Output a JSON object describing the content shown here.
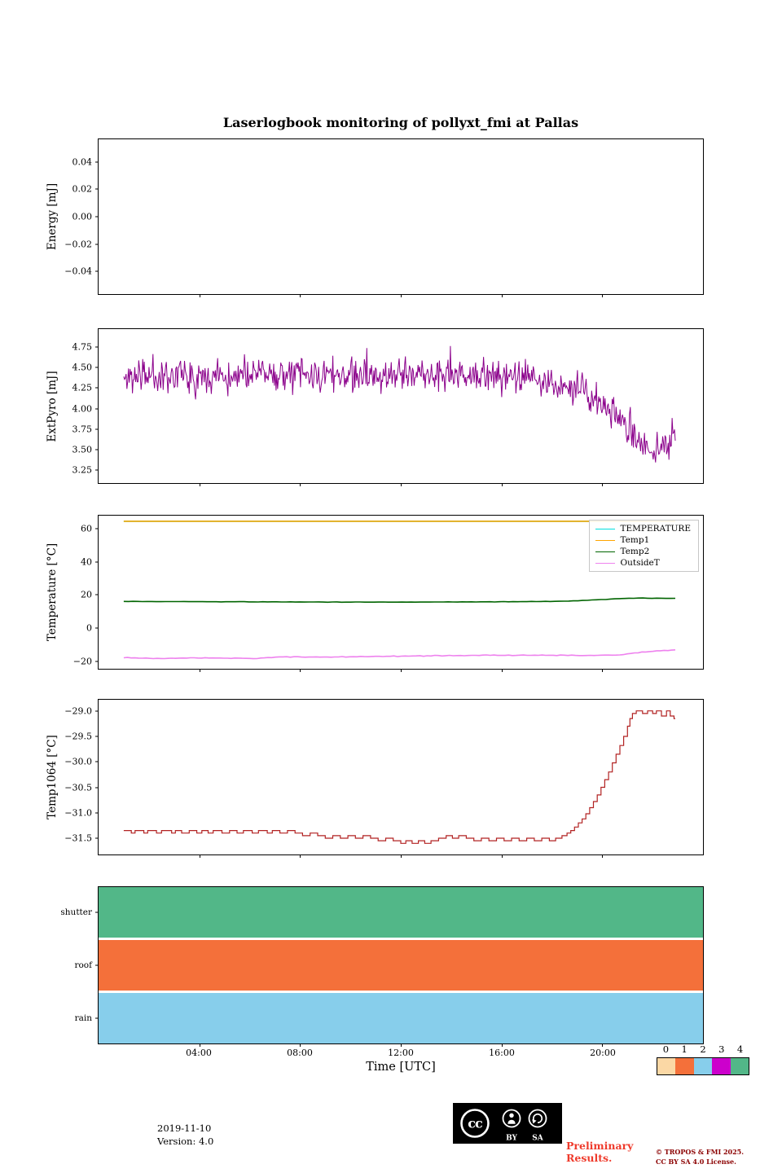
{
  "title": "Laserlogbook monitoring of pollyxt_fmi at Pallas",
  "time_axis": {
    "label": "Time [UTC]",
    "range_hours": [
      0,
      24
    ],
    "ticks": [
      {
        "hour": 4,
        "label": "04:00"
      },
      {
        "hour": 8,
        "label": "08:00"
      },
      {
        "hour": 12,
        "label": "12:00"
      },
      {
        "hour": 16,
        "label": "16:00"
      },
      {
        "hour": 20,
        "label": "20:00"
      }
    ]
  },
  "chart_data": [
    {
      "id": "energy",
      "type": "line",
      "ylabel": "Energy [mJ]",
      "ylim": [
        -0.0565,
        0.0565
      ],
      "grid": false,
      "yticks": [
        {
          "v": 0.04,
          "label": "0.04"
        },
        {
          "v": 0.02,
          "label": "0.02"
        },
        {
          "v": 0.0,
          "label": "0.00"
        },
        {
          "v": -0.02,
          "label": "−0.02"
        },
        {
          "v": -0.04,
          "label": "−0.04"
        }
      ],
      "series": []
    },
    {
      "id": "extpyro",
      "type": "line",
      "ylabel": "ExtPyro [mJ]",
      "ylim": [
        3.09,
        4.97
      ],
      "grid": false,
      "yticks": [
        {
          "v": 4.75,
          "label": "4.75"
        },
        {
          "v": 4.5,
          "label": "4.50"
        },
        {
          "v": 4.25,
          "label": "4.25"
        },
        {
          "v": 4.0,
          "label": "4.00"
        },
        {
          "v": 3.75,
          "label": "3.75"
        },
        {
          "v": 3.5,
          "label": "3.50"
        },
        {
          "v": 3.25,
          "label": "3.25"
        }
      ],
      "series": [
        {
          "name": "ExtPyro",
          "color": "#8B008B",
          "width": 1,
          "samples": 700,
          "seed": 11,
          "noise_amp": 0.3,
          "spike_prob": 0.05,
          "spike_amp": 0.28,
          "trend": [
            [
              1,
              4.36
            ],
            [
              1.5,
              4.4
            ],
            [
              2,
              4.42
            ],
            [
              3,
              4.41
            ],
            [
              4,
              4.42
            ],
            [
              5,
              4.4
            ],
            [
              6,
              4.42
            ],
            [
              7,
              4.43
            ],
            [
              8,
              4.41
            ],
            [
              9,
              4.4
            ],
            [
              10,
              4.42
            ],
            [
              11,
              4.4
            ],
            [
              12,
              4.41
            ],
            [
              13,
              4.42
            ],
            [
              14,
              4.41
            ],
            [
              15,
              4.4
            ],
            [
              16,
              4.4
            ],
            [
              17,
              4.37
            ],
            [
              17.5,
              4.35
            ],
            [
              18,
              4.32
            ],
            [
              18.5,
              4.28
            ],
            [
              19,
              4.23
            ],
            [
              19.5,
              4.14
            ],
            [
              20,
              4.04
            ],
            [
              20.4,
              3.94
            ],
            [
              20.8,
              3.82
            ],
            [
              21.1,
              3.7
            ],
            [
              21.4,
              3.6
            ],
            [
              21.7,
              3.52
            ],
            [
              22,
              3.47
            ],
            [
              22.3,
              3.53
            ],
            [
              22.6,
              3.6
            ],
            [
              22.9,
              3.7
            ]
          ]
        }
      ]
    },
    {
      "id": "temperature",
      "type": "line",
      "ylabel": "Temperature [°C]",
      "ylim": [
        -24.4,
        67.7
      ],
      "grid": false,
      "legend": {
        "position": "upper right",
        "entries": [
          "TEMPERATURE",
          "Temp1",
          "Temp2",
          "OutsideT"
        ]
      },
      "yticks": [
        {
          "v": 60,
          "label": "60"
        },
        {
          "v": 40,
          "label": "40"
        },
        {
          "v": 20,
          "label": "20"
        },
        {
          "v": 0,
          "label": "0"
        },
        {
          "v": -20,
          "label": "−20"
        }
      ],
      "series": [
        {
          "name": "TEMPERATURE",
          "color": "#00E0E0",
          "width": 1.6,
          "points": [
            [
              1,
              64.3
            ],
            [
              22.9,
              64.3
            ]
          ]
        },
        {
          "name": "Temp1",
          "color": "#FFA500",
          "width": 1.6,
          "points": [
            [
              1,
              64.3
            ],
            [
              22.9,
              64.3
            ]
          ]
        },
        {
          "name": "Temp2",
          "color": "#006400",
          "width": 1.6,
          "samples": 120,
          "seed": 5,
          "noise_amp": 0.18,
          "spike_prob": 0,
          "spike_amp": 0,
          "trend": [
            [
              1,
              16.1
            ],
            [
              3,
              16.0
            ],
            [
              5,
              15.9
            ],
            [
              7,
              15.85
            ],
            [
              9,
              15.75
            ],
            [
              11,
              15.7
            ],
            [
              13,
              15.75
            ],
            [
              15,
              15.85
            ],
            [
              16.5,
              15.95
            ],
            [
              18,
              16.1
            ],
            [
              19,
              16.5
            ],
            [
              19.8,
              17.1
            ],
            [
              20.5,
              17.7
            ],
            [
              21,
              18.0
            ],
            [
              21.6,
              18.1
            ],
            [
              22.3,
              18.0
            ],
            [
              22.9,
              17.95
            ]
          ]
        },
        {
          "name": "OutsideT",
          "color": "#EE82EE",
          "width": 1.6,
          "samples": 150,
          "seed": 9,
          "noise_amp": 0.35,
          "spike_prob": 0,
          "spike_amp": 0,
          "trend": [
            [
              1,
              -17.7
            ],
            [
              1.8,
              -18.1
            ],
            [
              2.5,
              -18.2
            ],
            [
              3.5,
              -17.95
            ],
            [
              4.5,
              -18.0
            ],
            [
              5.5,
              -18.05
            ],
            [
              6.3,
              -18.1
            ],
            [
              6.8,
              -17.8
            ],
            [
              7.2,
              -17.25
            ],
            [
              7.8,
              -17.4
            ],
            [
              8.5,
              -17.3
            ],
            [
              9.5,
              -17.3
            ],
            [
              10.5,
              -17.1
            ],
            [
              11.5,
              -16.95
            ],
            [
              12.5,
              -16.75
            ],
            [
              13.5,
              -16.55
            ],
            [
              14.5,
              -16.4
            ],
            [
              15.5,
              -16.25
            ],
            [
              16.5,
              -16.3
            ],
            [
              17.5,
              -16.25
            ],
            [
              18.5,
              -16.3
            ],
            [
              19.3,
              -16.4
            ],
            [
              20,
              -16.45
            ],
            [
              20.5,
              -16.2
            ],
            [
              21,
              -15.5
            ],
            [
              21.5,
              -14.5
            ],
            [
              22,
              -13.8
            ],
            [
              22.4,
              -13.4
            ],
            [
              22.9,
              -13.1
            ]
          ]
        }
      ]
    },
    {
      "id": "temp1064",
      "type": "step",
      "ylabel": "Temp1064 [°C]",
      "ylim": [
        -31.82,
        -28.78
      ],
      "grid": false,
      "yticks": [
        {
          "v": -29.0,
          "label": "−29.0"
        },
        {
          "v": -29.5,
          "label": "−29.5"
        },
        {
          "v": -30.0,
          "label": "−30.0"
        },
        {
          "v": -30.5,
          "label": "−30.5"
        },
        {
          "v": -31.0,
          "label": "−31.0"
        },
        {
          "v": -31.5,
          "label": "−31.5"
        }
      ],
      "series": [
        {
          "name": "Temp1064",
          "color": "#B22222",
          "width": 1.2,
          "points": [
            [
              1,
              -31.35
            ],
            [
              1.3,
              -31.4
            ],
            [
              1.45,
              -31.35
            ],
            [
              1.8,
              -31.4
            ],
            [
              1.95,
              -31.35
            ],
            [
              2.3,
              -31.4
            ],
            [
              2.5,
              -31.35
            ],
            [
              2.9,
              -31.4
            ],
            [
              3.05,
              -31.35
            ],
            [
              3.3,
              -31.4
            ],
            [
              3.6,
              -31.35
            ],
            [
              3.9,
              -31.4
            ],
            [
              4.1,
              -31.35
            ],
            [
              4.35,
              -31.4
            ],
            [
              4.55,
              -31.35
            ],
            [
              4.9,
              -31.4
            ],
            [
              5.2,
              -31.35
            ],
            [
              5.5,
              -31.4
            ],
            [
              5.75,
              -31.35
            ],
            [
              6.1,
              -31.4
            ],
            [
              6.35,
              -31.35
            ],
            [
              6.7,
              -31.4
            ],
            [
              6.9,
              -31.35
            ],
            [
              7.2,
              -31.4
            ],
            [
              7.5,
              -31.35
            ],
            [
              7.8,
              -31.4
            ],
            [
              8.1,
              -31.45
            ],
            [
              8.4,
              -31.4
            ],
            [
              8.7,
              -31.45
            ],
            [
              9,
              -31.5
            ],
            [
              9.3,
              -31.45
            ],
            [
              9.6,
              -31.5
            ],
            [
              9.9,
              -31.45
            ],
            [
              10.2,
              -31.5
            ],
            [
              10.5,
              -31.45
            ],
            [
              10.8,
              -31.5
            ],
            [
              11.1,
              -31.55
            ],
            [
              11.4,
              -31.5
            ],
            [
              11.7,
              -31.55
            ],
            [
              12,
              -31.6
            ],
            [
              12.2,
              -31.55
            ],
            [
              12.45,
              -31.6
            ],
            [
              12.7,
              -31.55
            ],
            [
              12.95,
              -31.6
            ],
            [
              13.2,
              -31.55
            ],
            [
              13.5,
              -31.5
            ],
            [
              13.8,
              -31.45
            ],
            [
              14.05,
              -31.5
            ],
            [
              14.3,
              -31.45
            ],
            [
              14.6,
              -31.5
            ],
            [
              14.9,
              -31.55
            ],
            [
              15.2,
              -31.5
            ],
            [
              15.5,
              -31.55
            ],
            [
              15.8,
              -31.5
            ],
            [
              16.1,
              -31.55
            ],
            [
              16.4,
              -31.5
            ],
            [
              16.7,
              -31.55
            ],
            [
              17,
              -31.5
            ],
            [
              17.3,
              -31.55
            ],
            [
              17.6,
              -31.5
            ],
            [
              17.9,
              -31.55
            ],
            [
              18.15,
              -31.5
            ],
            [
              18.4,
              -31.45
            ],
            [
              18.6,
              -31.4
            ],
            [
              18.75,
              -31.35
            ],
            [
              18.9,
              -31.28
            ],
            [
              19.05,
              -31.2
            ],
            [
              19.2,
              -31.12
            ],
            [
              19.35,
              -31.02
            ],
            [
              19.5,
              -30.9
            ],
            [
              19.65,
              -30.78
            ],
            [
              19.8,
              -30.65
            ],
            [
              19.95,
              -30.5
            ],
            [
              20.1,
              -30.35
            ],
            [
              20.25,
              -30.2
            ],
            [
              20.4,
              -30.02
            ],
            [
              20.55,
              -29.85
            ],
            [
              20.7,
              -29.68
            ],
            [
              20.85,
              -29.5
            ],
            [
              21,
              -29.3
            ],
            [
              21.1,
              -29.15
            ],
            [
              21.2,
              -29.05
            ],
            [
              21.35,
              -29.0
            ],
            [
              21.6,
              -29.05
            ],
            [
              21.8,
              -29.0
            ],
            [
              22,
              -29.05
            ],
            [
              22.15,
              -29.0
            ],
            [
              22.35,
              -29.1
            ],
            [
              22.55,
              -29.0
            ],
            [
              22.7,
              -29.1
            ],
            [
              22.85,
              -29.15
            ],
            [
              22.9,
              -29.15
            ]
          ]
        }
      ]
    },
    {
      "id": "status",
      "type": "bands",
      "ylabel": "",
      "rows": [
        {
          "label": "shutter",
          "color": "#52B788",
          "value": 4
        },
        {
          "label": "roof",
          "color": "#F4703A",
          "value": 1
        },
        {
          "label": "rain",
          "color": "#87CEEB",
          "value": 2
        }
      ]
    }
  ],
  "colorbar": {
    "labels": [
      "0",
      "1",
      "2",
      "3",
      "4"
    ],
    "colors": [
      "#FBD8A5",
      "#F4703A",
      "#87CEEB",
      "#CC00CC",
      "#52B788"
    ]
  },
  "footer": {
    "date": "2019-11-10",
    "version": "Version: 4.0",
    "preliminary_line1": "Preliminary",
    "preliminary_line2": "Results.",
    "copyright_line1": "© TROPOS & FMI 2025.",
    "copyright_line2": "CC BY SA 4.0 License.",
    "cc": {
      "cc_text": "cc",
      "by": "BY",
      "sa": "SA"
    }
  },
  "colors": {
    "preliminary_text": "#EF3B2C",
    "copyright_text": "#8B0000"
  }
}
